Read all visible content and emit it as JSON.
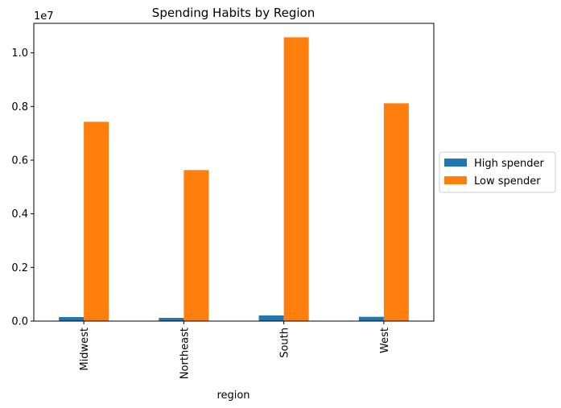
{
  "chart_data": {
    "type": "bar",
    "title": "Spending Habits by Region",
    "xlabel": "region",
    "ylabel": "",
    "y_offset_label": "1e7",
    "categories": [
      "Midwest",
      "Northeast",
      "South",
      "West"
    ],
    "series": [
      {
        "name": "High spender",
        "color": "#1f77b4",
        "values": [
          0.015,
          0.012,
          0.021,
          0.016
        ]
      },
      {
        "name": "Low spender",
        "color": "#ff7f0e",
        "values": [
          0.743,
          0.563,
          1.058,
          0.812
        ]
      }
    ],
    "ylim": [
      0,
      1.11
    ],
    "yticks": [
      {
        "value": 0.0,
        "label": "0.0"
      },
      {
        "value": 0.2,
        "label": "0.2"
      },
      {
        "value": 0.4,
        "label": "0.4"
      },
      {
        "value": 0.6,
        "label": "0.6"
      },
      {
        "value": 0.8,
        "label": "0.8"
      },
      {
        "value": 1.0,
        "label": "1.0"
      }
    ],
    "grid": false,
    "legend_position": "center-right, outside plot"
  }
}
